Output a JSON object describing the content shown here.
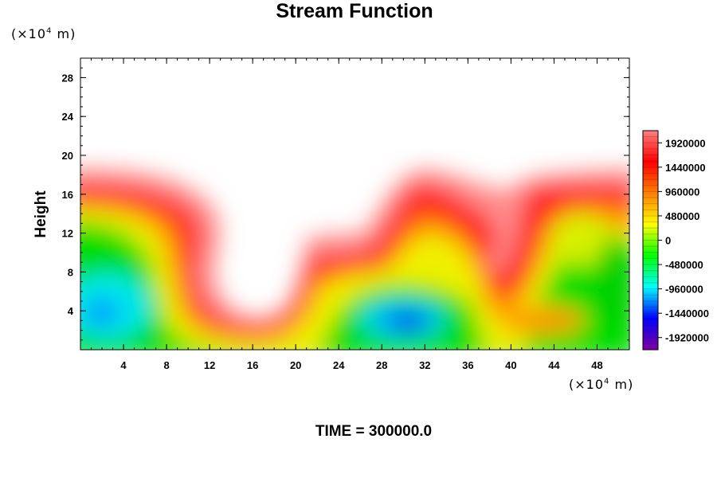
{
  "chart_data": {
    "type": "heatmap",
    "title": "Stream Function",
    "ylabel": "Height",
    "x_unit": "(×10",
    "x_unit_exp": "4",
    "x_unit_tail": " m)",
    "y_unit": "(×10",
    "y_unit_exp": "4",
    "y_unit_tail": " m)",
    "xlim": [
      0,
      51
    ],
    "ylim": [
      0,
      30
    ],
    "x_ticks": [
      4,
      8,
      12,
      16,
      20,
      24,
      28,
      32,
      36,
      40,
      44,
      48
    ],
    "y_ticks": [
      4,
      8,
      12,
      16,
      20,
      24,
      28
    ],
    "colorbar_ticks": [
      1920000,
      1440000,
      960000,
      480000,
      0,
      -480000,
      -960000,
      -1440000,
      -1920000
    ],
    "colorbar_range": [
      -2160000,
      2160000
    ],
    "colormap": [
      "#8000a0",
      "#0000ff",
      "#00ffff",
      "#00ff00",
      "#ffff00",
      "#ff8000",
      "#ff0000",
      "#ff8080"
    ]
  },
  "footer": "TIME = 300000.0"
}
